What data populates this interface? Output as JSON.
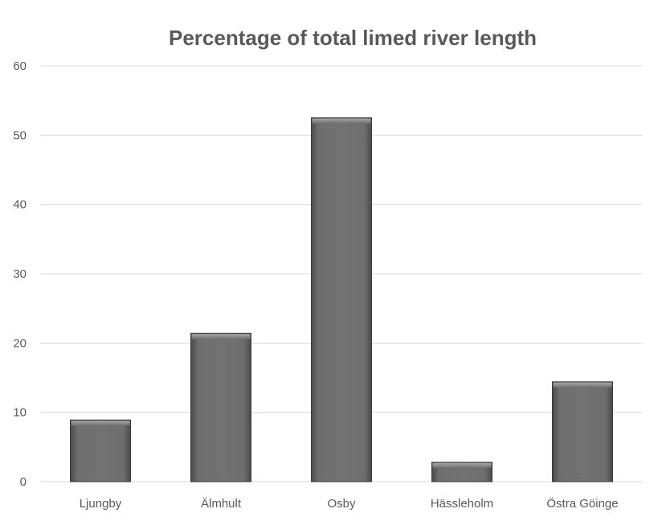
{
  "chart_data": {
    "type": "bar",
    "title": "Percentage of total limed river length",
    "xlabel": "",
    "ylabel": "",
    "categories": [
      "Ljungby",
      "Älmhult",
      "Osby",
      "Hässleholm",
      "Östra Göinge"
    ],
    "values": [
      8.9,
      21.4,
      52.5,
      2.8,
      14.4
    ],
    "ylim": [
      0,
      60
    ],
    "yticks": [
      0,
      10,
      20,
      30,
      40,
      50,
      60
    ],
    "grid": true,
    "legend": "none",
    "colors": {
      "bar_top": "#8c8c8c",
      "bar_mid": "#6e6e6e",
      "bar_edge": "#3a3a3a",
      "grid": "#d9d9d9",
      "text": "#595959"
    }
  }
}
